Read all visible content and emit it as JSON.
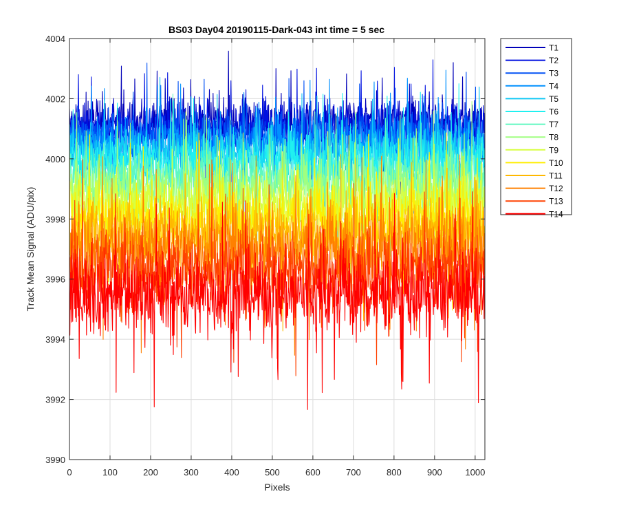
{
  "chart_data": {
    "type": "line",
    "title": "BS03 Day04 20190115-Dark-043 int time = 5 sec",
    "xlabel": "Pixels",
    "ylabel": "Track Mean Signal (ADU/pix)",
    "xlim": [
      0,
      1024
    ],
    "ylim": [
      3990,
      4004
    ],
    "x_ticks": [
      0,
      100,
      200,
      300,
      400,
      500,
      600,
      700,
      800,
      900,
      1000
    ],
    "y_ticks": [
      3990,
      3992,
      3994,
      3996,
      3998,
      4000,
      4002,
      4004
    ],
    "grid": true,
    "legend_position": "outside-right-top",
    "n_points": 1024,
    "series": [
      {
        "name": "T1",
        "color": "#0000b8",
        "mean": 4001.2,
        "spread": 0.75
      },
      {
        "name": "T2",
        "color": "#0010e0",
        "mean": 4001.0,
        "spread": 0.75
      },
      {
        "name": "T3",
        "color": "#0050f5",
        "mean": 4000.8,
        "spread": 0.78
      },
      {
        "name": "T4",
        "color": "#0090ff",
        "mean": 4000.5,
        "spread": 0.8
      },
      {
        "name": "T5",
        "color": "#10c8f5",
        "mean": 4000.2,
        "spread": 0.82
      },
      {
        "name": "T6",
        "color": "#20f0f0",
        "mean": 3999.9,
        "spread": 0.85
      },
      {
        "name": "T7",
        "color": "#60f8c0",
        "mean": 3999.4,
        "spread": 0.9
      },
      {
        "name": "T8",
        "color": "#a0ff80",
        "mean": 3999.0,
        "spread": 0.95
      },
      {
        "name": "T9",
        "color": "#d8ff40",
        "mean": 3998.5,
        "spread": 1.0
      },
      {
        "name": "T10",
        "color": "#ffee00",
        "mean": 3998.0,
        "spread": 1.05
      },
      {
        "name": "T11",
        "color": "#ffb800",
        "mean": 3997.5,
        "spread": 1.1
      },
      {
        "name": "T12",
        "color": "#ff8000",
        "mean": 3997.0,
        "spread": 1.15
      },
      {
        "name": "T13",
        "color": "#ff4000",
        "mean": 3996.3,
        "spread": 1.2
      },
      {
        "name": "T14",
        "color": "#ff0000",
        "mean": 3995.5,
        "spread": 1.25
      }
    ]
  }
}
